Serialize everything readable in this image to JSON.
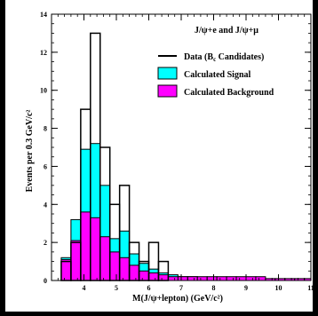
{
  "chart_data": {
    "type": "histogram",
    "title": "",
    "xlabel": "M(J/ψ+lepton) (GeV/c²)",
    "ylabel": "Events per 0.3 GeV/c²",
    "xlim": [
      3,
      11
    ],
    "ylim": [
      0,
      14
    ],
    "x_ticks": [
      4,
      5,
      6,
      7,
      8,
      9,
      10,
      11
    ],
    "y_ticks": [
      0,
      2,
      4,
      6,
      8,
      10,
      12,
      14
    ],
    "bin_edges": [
      3.3,
      3.6,
      3.9,
      4.2,
      4.5,
      4.8,
      5.1,
      5.4,
      5.7,
      6.0,
      6.3,
      6.6,
      6.9,
      7.2,
      7.5,
      7.8,
      8.1,
      8.4,
      8.7,
      9.0,
      9.3,
      9.6,
      9.9,
      10.2,
      10.5,
      10.8,
      11.0
    ],
    "legend_header": "J/ψ+e  and J/ψ+μ",
    "legend_position": "top-right",
    "series": [
      {
        "name": "Data (Bₑ Candidates)",
        "label_main": "Data (B",
        "label_sub": "c",
        "label_tail": " Candidates)",
        "style": "step",
        "color": "#000000",
        "values": [
          1,
          2,
          9,
          13,
          7,
          4,
          5,
          2,
          1,
          2,
          1,
          0,
          0,
          0,
          0,
          0,
          0,
          0,
          0,
          0,
          0,
          0,
          0,
          0,
          0,
          0
        ]
      },
      {
        "name": "Calculated Signal",
        "style": "filled",
        "color": "#00FFFF",
        "values": [
          1.2,
          3.2,
          6.9,
          7.2,
          5.0,
          2.2,
          2.6,
          1.4,
          0.9,
          0.6,
          0.4,
          0.3,
          0.2,
          0.2,
          0.1,
          0.1,
          0.1,
          0.1,
          0.1,
          0.0,
          0.0,
          0.0,
          0.0,
          0.0,
          0.0,
          0.0
        ]
      },
      {
        "name": "Calculated Background",
        "style": "filled",
        "color": "#FF00FF",
        "values": [
          1.1,
          2.1,
          3.6,
          3.3,
          2.3,
          1.5,
          1.2,
          0.8,
          0.5,
          0.4,
          0.3,
          0.2,
          0.2,
          0.2,
          0.2,
          0.2,
          0.2,
          0.2,
          0.2,
          0.2,
          0.2,
          0.1,
          0.1,
          0.1,
          0.1,
          0.1
        ]
      }
    ]
  }
}
